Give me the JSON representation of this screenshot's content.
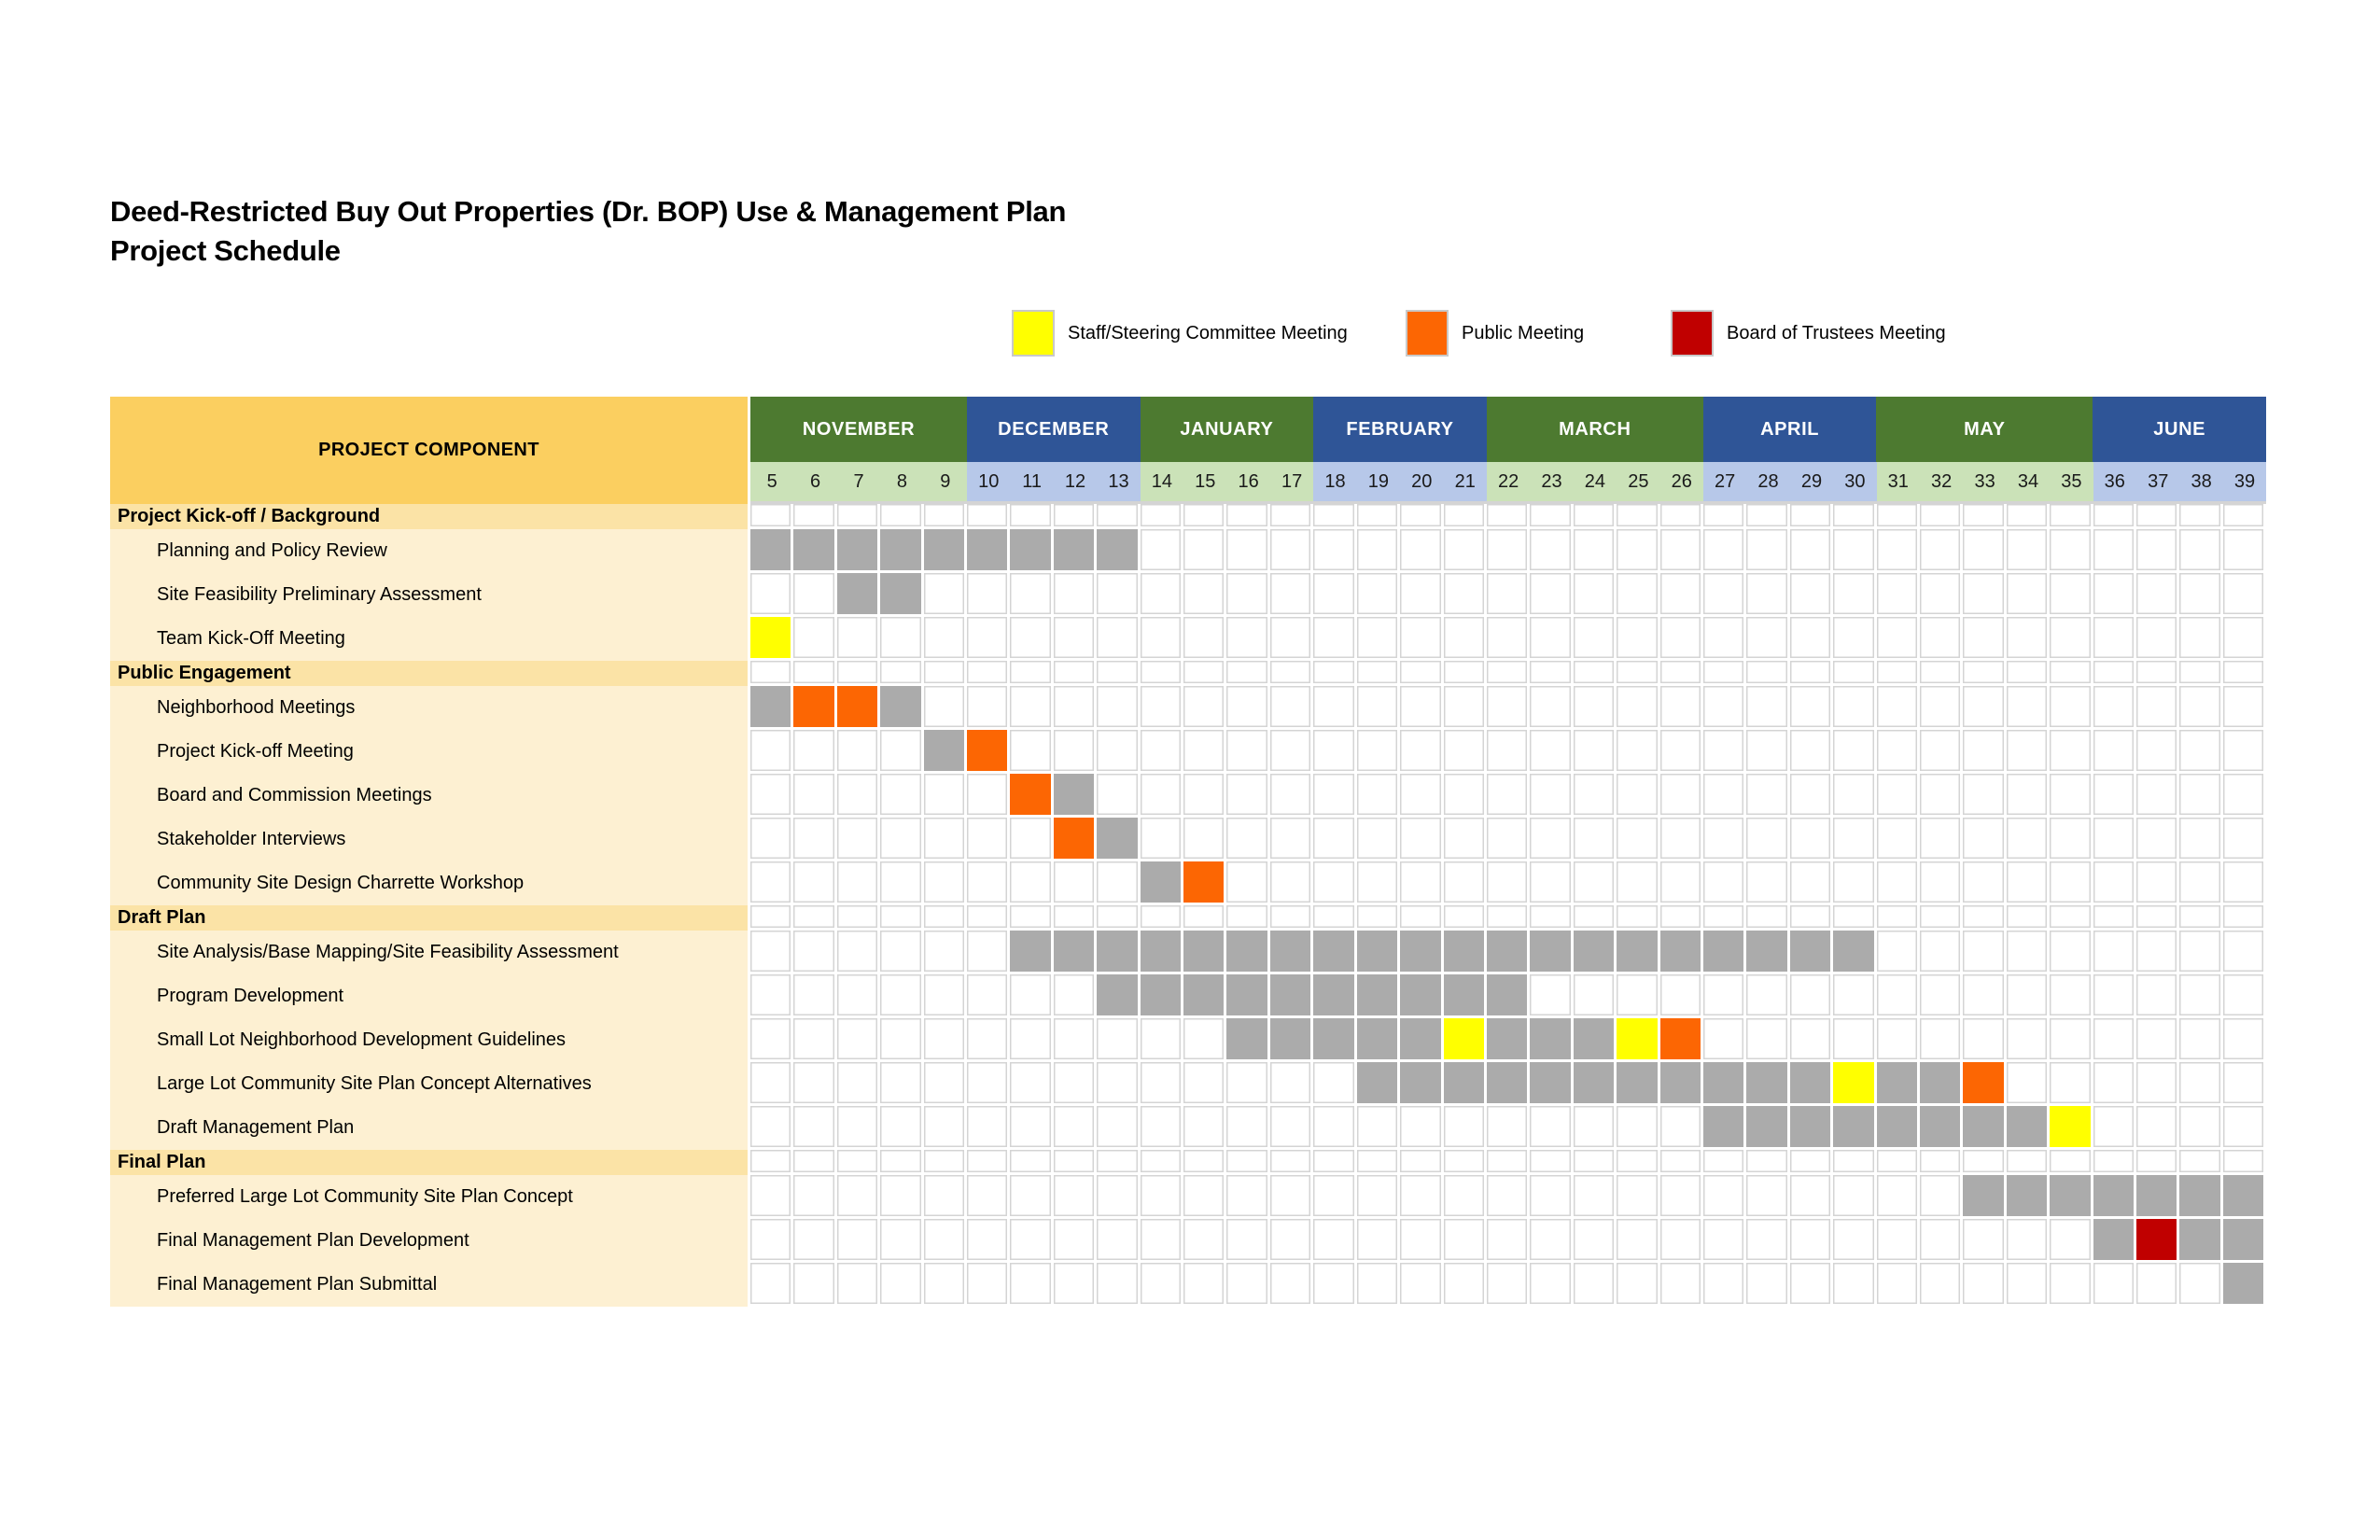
{
  "title": {
    "line1": "Deed-Restricted Buy Out Properties (Dr. BOP) Use & Management Plan",
    "line2": "Project Schedule"
  },
  "legend": {
    "items": [
      {
        "label": "Staff/Steering Committee Meeting",
        "color": "#FFFF00"
      },
      {
        "label": "Public Meeting",
        "color": "#FC6603"
      },
      {
        "label": "Board of Trustees Meeting",
        "color": "#C00000"
      }
    ]
  },
  "colors": {
    "header_gold": "#FBCF60",
    "section_gold": "#FBE3A6",
    "task_cream": "#FDF0D2",
    "month_green": "#4D7A30",
    "month_blue": "#2F5597",
    "week_green": "#CBE2B8",
    "week_blue": "#B7C8E9",
    "bar_gray": "#ABABAB",
    "meeting_yellow": "#FFFF00",
    "meeting_orange": "#FC6603",
    "meeting_red": "#C00000",
    "gridline": "#D4D4D4"
  },
  "chart_data": {
    "type": "table",
    "title": "Deed-Restricted Buy Out Properties (Dr. BOP) Use & Management Plan — Project Schedule",
    "component_column_header": "PROJECT COMPONENT",
    "week_axis": {
      "start": 5,
      "end": 39
    },
    "months": [
      {
        "name": "NOVEMBER",
        "theme": "green",
        "weeks": [
          5,
          6,
          7,
          8,
          9
        ]
      },
      {
        "name": "DECEMBER",
        "theme": "blue",
        "weeks": [
          10,
          11,
          12,
          13
        ]
      },
      {
        "name": "JANUARY",
        "theme": "green",
        "weeks": [
          14,
          15,
          16,
          17
        ]
      },
      {
        "name": "FEBRUARY",
        "theme": "blue",
        "weeks": [
          18,
          19,
          20,
          21
        ]
      },
      {
        "name": "MARCH",
        "theme": "green",
        "weeks": [
          22,
          23,
          24,
          25,
          26
        ]
      },
      {
        "name": "APRIL",
        "theme": "blue",
        "weeks": [
          27,
          28,
          29,
          30
        ]
      },
      {
        "name": "MAY",
        "theme": "green",
        "weeks": [
          31,
          32,
          33,
          34,
          35
        ]
      },
      {
        "name": "JUNE",
        "theme": "blue",
        "weeks": [
          36,
          37,
          38,
          39
        ]
      }
    ],
    "cell_color_meaning": {
      "gray": "activity duration",
      "yellow": "Staff/Steering Committee Meeting",
      "orange": "Public Meeting",
      "red": "Board of Trustees Meeting"
    },
    "rows": [
      {
        "type": "section",
        "label": "Project Kick-off / Background"
      },
      {
        "type": "task",
        "label": "Planning and Policy Review",
        "fills": [
          {
            "start": 5,
            "end": 13,
            "color": "gray"
          }
        ]
      },
      {
        "type": "task",
        "label": "Site Feasibility Preliminary Assessment",
        "fills": [
          {
            "start": 7,
            "end": 8,
            "color": "gray"
          }
        ]
      },
      {
        "type": "task",
        "label": "Team Kick-Off Meeting",
        "fills": [
          {
            "start": 5,
            "end": 5,
            "color": "yellow"
          }
        ]
      },
      {
        "type": "section",
        "label": "Public Engagement"
      },
      {
        "type": "task",
        "label": "Neighborhood Meetings",
        "fills": [
          {
            "start": 5,
            "end": 5,
            "color": "gray"
          },
          {
            "start": 6,
            "end": 7,
            "color": "orange"
          },
          {
            "start": 8,
            "end": 8,
            "color": "gray"
          }
        ]
      },
      {
        "type": "task",
        "label": "Project Kick-off Meeting",
        "fills": [
          {
            "start": 9,
            "end": 9,
            "color": "gray"
          },
          {
            "start": 10,
            "end": 10,
            "color": "orange"
          }
        ]
      },
      {
        "type": "task",
        "label": "Board and Commission Meetings",
        "fills": [
          {
            "start": 11,
            "end": 11,
            "color": "orange"
          },
          {
            "start": 12,
            "end": 12,
            "color": "gray"
          }
        ]
      },
      {
        "type": "task",
        "label": "Stakeholder Interviews",
        "fills": [
          {
            "start": 12,
            "end": 12,
            "color": "orange"
          },
          {
            "start": 13,
            "end": 13,
            "color": "gray"
          }
        ]
      },
      {
        "type": "task",
        "label": "Community Site Design Charrette Workshop",
        "fills": [
          {
            "start": 14,
            "end": 14,
            "color": "gray"
          },
          {
            "start": 15,
            "end": 15,
            "color": "orange"
          }
        ]
      },
      {
        "type": "section",
        "label": "Draft Plan"
      },
      {
        "type": "task",
        "label": "Site Analysis/Base Mapping/Site Feasibility Assessment",
        "fills": [
          {
            "start": 11,
            "end": 30,
            "color": "gray"
          }
        ]
      },
      {
        "type": "task",
        "label": "Program Development",
        "fills": [
          {
            "start": 13,
            "end": 22,
            "color": "gray"
          }
        ]
      },
      {
        "type": "task",
        "label": "Small Lot Neighborhood Development Guidelines",
        "fills": [
          {
            "start": 16,
            "end": 20,
            "color": "gray"
          },
          {
            "start": 21,
            "end": 21,
            "color": "yellow"
          },
          {
            "start": 22,
            "end": 24,
            "color": "gray"
          },
          {
            "start": 25,
            "end": 25,
            "color": "yellow"
          },
          {
            "start": 26,
            "end": 26,
            "color": "orange"
          }
        ]
      },
      {
        "type": "task",
        "label": "Large Lot Community Site Plan Concept Alternatives",
        "fills": [
          {
            "start": 19,
            "end": 29,
            "color": "gray"
          },
          {
            "start": 30,
            "end": 30,
            "color": "yellow"
          },
          {
            "start": 31,
            "end": 32,
            "color": "gray"
          },
          {
            "start": 33,
            "end": 33,
            "color": "orange"
          }
        ]
      },
      {
        "type": "task",
        "label": "Draft Management Plan",
        "fills": [
          {
            "start": 27,
            "end": 34,
            "color": "gray"
          },
          {
            "start": 35,
            "end": 35,
            "color": "yellow"
          }
        ]
      },
      {
        "type": "section",
        "label": "Final Plan"
      },
      {
        "type": "task",
        "label": "Preferred Large Lot Community Site Plan Concept",
        "fills": [
          {
            "start": 33,
            "end": 39,
            "color": "gray"
          }
        ]
      },
      {
        "type": "task",
        "label": "Final Management Plan Development",
        "fills": [
          {
            "start": 36,
            "end": 36,
            "color": "gray"
          },
          {
            "start": 37,
            "end": 37,
            "color": "red"
          },
          {
            "start": 38,
            "end": 39,
            "color": "gray"
          }
        ]
      },
      {
        "type": "task",
        "label": "Final Management Plan Submittal",
        "fills": [
          {
            "start": 39,
            "end": 39,
            "color": "gray"
          }
        ]
      }
    ]
  }
}
